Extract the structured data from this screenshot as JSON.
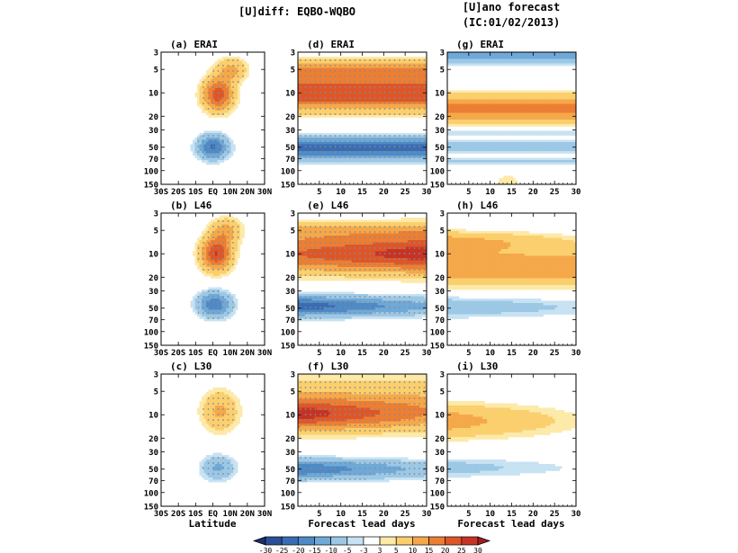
{
  "chart_data": {
    "type": "heatmap",
    "title_left": "[U]diff: EQBO-WQBO",
    "title_right_line1": "[U]ano forecast",
    "title_right_line2": "(IC:01/02/2013)",
    "panels": [
      {
        "id": "a",
        "label": "(a) ERAI",
        "kind": "lat"
      },
      {
        "id": "d",
        "label": "(d) ERAI",
        "kind": "lead"
      },
      {
        "id": "g",
        "label": "(g) ERAI",
        "kind": "lead"
      },
      {
        "id": "b",
        "label": "(b) L46",
        "kind": "lat"
      },
      {
        "id": "e",
        "label": "(e) L46",
        "kind": "lead"
      },
      {
        "id": "h",
        "label": "(h) L46",
        "kind": "lead"
      },
      {
        "id": "c",
        "label": "(c) L30",
        "kind": "lat"
      },
      {
        "id": "f",
        "label": "(f) L30",
        "kind": "lead"
      },
      {
        "id": "i",
        "label": "(i) L30",
        "kind": "lead"
      }
    ],
    "pressure_levels": [
      "3",
      "5",
      "10",
      "20",
      "30",
      "50",
      "70",
      "100",
      "150"
    ],
    "pressure_values": [
      3,
      5,
      10,
      20,
      30,
      50,
      70,
      100,
      150
    ],
    "lat_ticks": [
      "30S",
      "20S",
      "10S",
      "EQ",
      "10N",
      "20N",
      "30N"
    ],
    "lat_values": [
      -30,
      -20,
      -10,
      0,
      10,
      20,
      30
    ],
    "lead_ticks": [
      "5",
      "10",
      "15",
      "20",
      "25",
      "30"
    ],
    "lead_values": [
      5,
      10,
      15,
      20,
      25,
      30
    ],
    "xlabel_lat": "Latitude",
    "xlabel_lead": "Forecast lead days",
    "colorbar_levels": [
      "-30",
      "-25",
      "-20",
      "-15",
      "-10",
      "-5",
      "-3",
      "3",
      "5",
      "10",
      "15",
      "20",
      "25",
      "30"
    ],
    "colorbar_colors": [
      "#1c2f6b",
      "#2a4f9a",
      "#3a6cb3",
      "#4d8ac6",
      "#6fa9d8",
      "#9cc8e6",
      "#c7e2f2",
      "#ffffff",
      "#fde9a8",
      "#fbcf6e",
      "#f5a84a",
      "#ec7e33",
      "#dd5629",
      "#c63325",
      "#9c1f1f"
    ]
  }
}
